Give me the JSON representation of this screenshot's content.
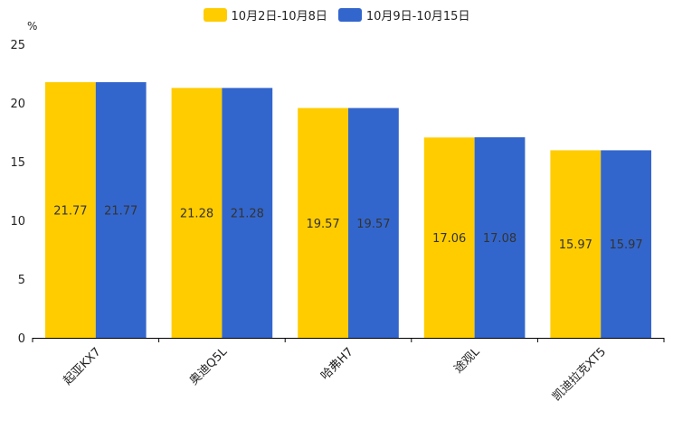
{
  "chart_data": {
    "type": "bar",
    "unit_label": "%",
    "categories": [
      "起亚KX7",
      "奥迪Q5L",
      "哈弗H7",
      "途观L",
      "凯迪拉克XT5"
    ],
    "series": [
      {
        "name": "10月2日-10月8日",
        "color": "#FFCC00",
        "values": [
          21.77,
          21.28,
          19.57,
          17.06,
          15.97
        ]
      },
      {
        "name": "10月9日-10月15日",
        "color": "#3366CC",
        "values": [
          21.77,
          21.28,
          19.57,
          17.08,
          15.97
        ]
      }
    ],
    "ylim": [
      0,
      25
    ],
    "yticks": [
      0,
      5,
      10,
      15,
      20,
      25
    ],
    "legend": "top-center",
    "grid": false
  }
}
